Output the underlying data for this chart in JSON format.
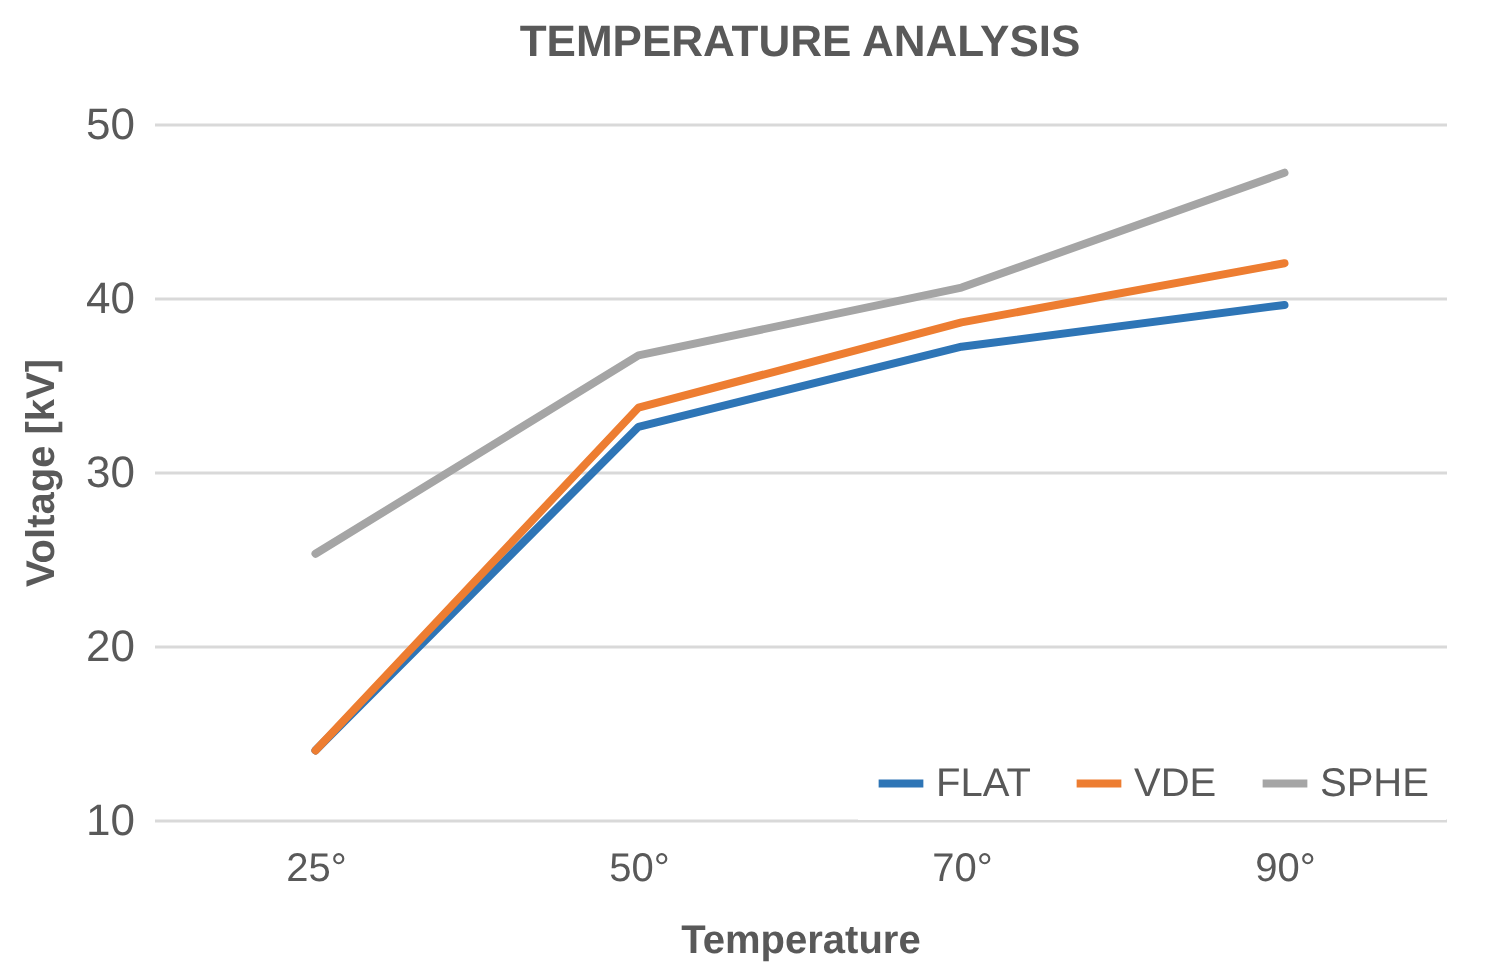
{
  "chart_data": {
    "type": "line",
    "title": "TEMPERATURE ANALYSIS",
    "xlabel": "Temperature",
    "ylabel": "Voltage [kV]",
    "categories": [
      "25°",
      "50°",
      "70°",
      "90°"
    ],
    "series": [
      {
        "name": "FLAT",
        "color": "#2e75b6",
        "values": [
          14.0,
          32.6,
          37.2,
          39.6
        ]
      },
      {
        "name": "VDE",
        "color": "#ed7d31",
        "values": [
          14.0,
          33.7,
          38.6,
          42.0
        ]
      },
      {
        "name": "SPHE",
        "color": "#a5a5a5",
        "values": [
          25.3,
          36.7,
          40.6,
          47.2
        ]
      }
    ],
    "ylim": [
      10,
      50
    ],
    "yticks": [
      10,
      20,
      30,
      40,
      50
    ],
    "grid": "y",
    "legend": "bottom right",
    "marker": "none",
    "line_style": "solid"
  }
}
